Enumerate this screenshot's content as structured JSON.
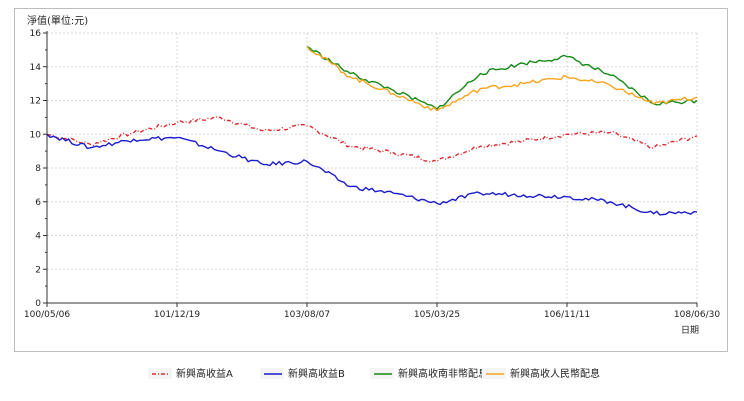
{
  "chart_data": {
    "type": "line",
    "ylabel": "淨值(單位:元)",
    "xlabel": "日期",
    "ylim": [
      0,
      16
    ],
    "y_ticks": [
      "0",
      "2",
      "4",
      "6",
      "8",
      "10",
      "12",
      "14",
      "16"
    ],
    "x_tick_labels": [
      "100/05/06",
      "101/12/19",
      "103/08/07",
      "105/03/25",
      "106/11/11",
      "108/06/30"
    ],
    "x": [
      "100/05/06",
      "100/12/01",
      "101/06/01",
      "101/12/19",
      "102/06/01",
      "103/01/01",
      "103/08/07",
      "104/03/01",
      "104/09/01",
      "105/03/25",
      "105/10/01",
      "106/05/01",
      "106/11/11",
      "107/06/01",
      "108/01/01",
      "108/06/30"
    ],
    "series": [
      {
        "name": "新興高收益A",
        "color": "#e0282c",
        "style": "dashdot",
        "values": [
          10.0,
          9.4,
          10.1,
          10.7,
          11.0,
          10.2,
          10.5,
          9.3,
          8.9,
          8.4,
          9.3,
          9.6,
          10.0,
          10.1,
          9.2,
          9.9
        ]
      },
      {
        "name": "新興高收益B",
        "color": "#1c1ccc",
        "style": "solid",
        "values": [
          10.0,
          9.2,
          9.7,
          9.8,
          9.0,
          8.2,
          8.4,
          6.9,
          6.5,
          5.9,
          6.5,
          6.4,
          6.3,
          6.0,
          5.3,
          5.4
        ]
      },
      {
        "name": "新興高收南非幣配息",
        "color": "#158a15",
        "style": "solid",
        "values": [
          null,
          null,
          null,
          null,
          null,
          null,
          15.2,
          13.6,
          12.6,
          11.5,
          13.6,
          14.2,
          14.6,
          13.5,
          11.8,
          12.0
        ]
      },
      {
        "name": "新興高收人民幣配息",
        "color": "#f5a41c",
        "style": "solid",
        "values": [
          null,
          null,
          null,
          null,
          null,
          null,
          15.2,
          13.4,
          12.4,
          11.4,
          12.7,
          13.0,
          13.4,
          12.9,
          11.8,
          12.2
        ]
      }
    ],
    "grid": true,
    "legend_position": "bottom"
  }
}
